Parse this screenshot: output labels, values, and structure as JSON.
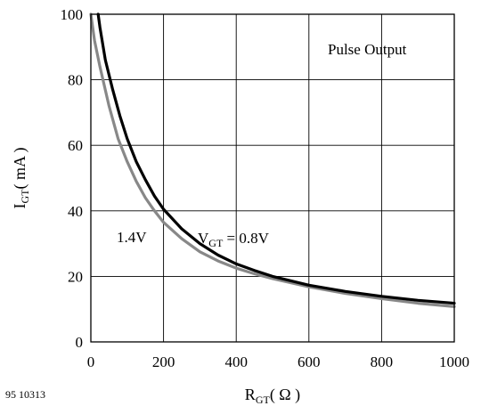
{
  "chart_data": {
    "type": "line",
    "figure_id": "95 10313",
    "annotation": "Pulse Output",
    "xlabel": {
      "main": "R",
      "sub": "GT",
      "rest": "( Ω )"
    },
    "ylabel": {
      "main": "I",
      "sub": "GT",
      "rest": "( mA )"
    },
    "xlim": [
      0,
      1000
    ],
    "ylim": [
      0,
      100
    ],
    "xticks": [
      0,
      200,
      400,
      600,
      800,
      1000
    ],
    "yticks": [
      0,
      20,
      40,
      60,
      80,
      100
    ],
    "grid": true,
    "series": [
      {
        "label": {
          "main": "V",
          "sub": "GT",
          "rest": " = 0.8V"
        },
        "color": "#000000",
        "points": [
          [
            20,
            100
          ],
          [
            25,
            96
          ],
          [
            40,
            86
          ],
          [
            60,
            77
          ],
          [
            80,
            69
          ],
          [
            100,
            62
          ],
          [
            125,
            55
          ],
          [
            150,
            49.5
          ],
          [
            175,
            44.5
          ],
          [
            200,
            40.5
          ],
          [
            250,
            34.5
          ],
          [
            300,
            30
          ],
          [
            350,
            26.5
          ],
          [
            400,
            23.8
          ],
          [
            450,
            21.8
          ],
          [
            500,
            20
          ],
          [
            600,
            17.3
          ],
          [
            700,
            15.4
          ],
          [
            800,
            13.9
          ],
          [
            900,
            12.7
          ],
          [
            1000,
            11.8
          ]
        ]
      },
      {
        "label": {
          "text": "1.4V"
        },
        "color": "#888888",
        "points": [
          [
            0,
            100
          ],
          [
            10,
            92
          ],
          [
            25,
            84
          ],
          [
            50,
            72
          ],
          [
            75,
            62
          ],
          [
            100,
            55
          ],
          [
            125,
            49
          ],
          [
            150,
            44
          ],
          [
            175,
            40
          ],
          [
            200,
            36.5
          ],
          [
            250,
            31.5
          ],
          [
            300,
            27.5
          ],
          [
            350,
            24.7
          ],
          [
            400,
            22.5
          ],
          [
            450,
            20.8
          ],
          [
            500,
            19.3
          ],
          [
            600,
            16.8
          ],
          [
            700,
            14.8
          ],
          [
            800,
            13.2
          ],
          [
            900,
            11.8
          ],
          [
            1000,
            10.8
          ]
        ]
      }
    ]
  }
}
